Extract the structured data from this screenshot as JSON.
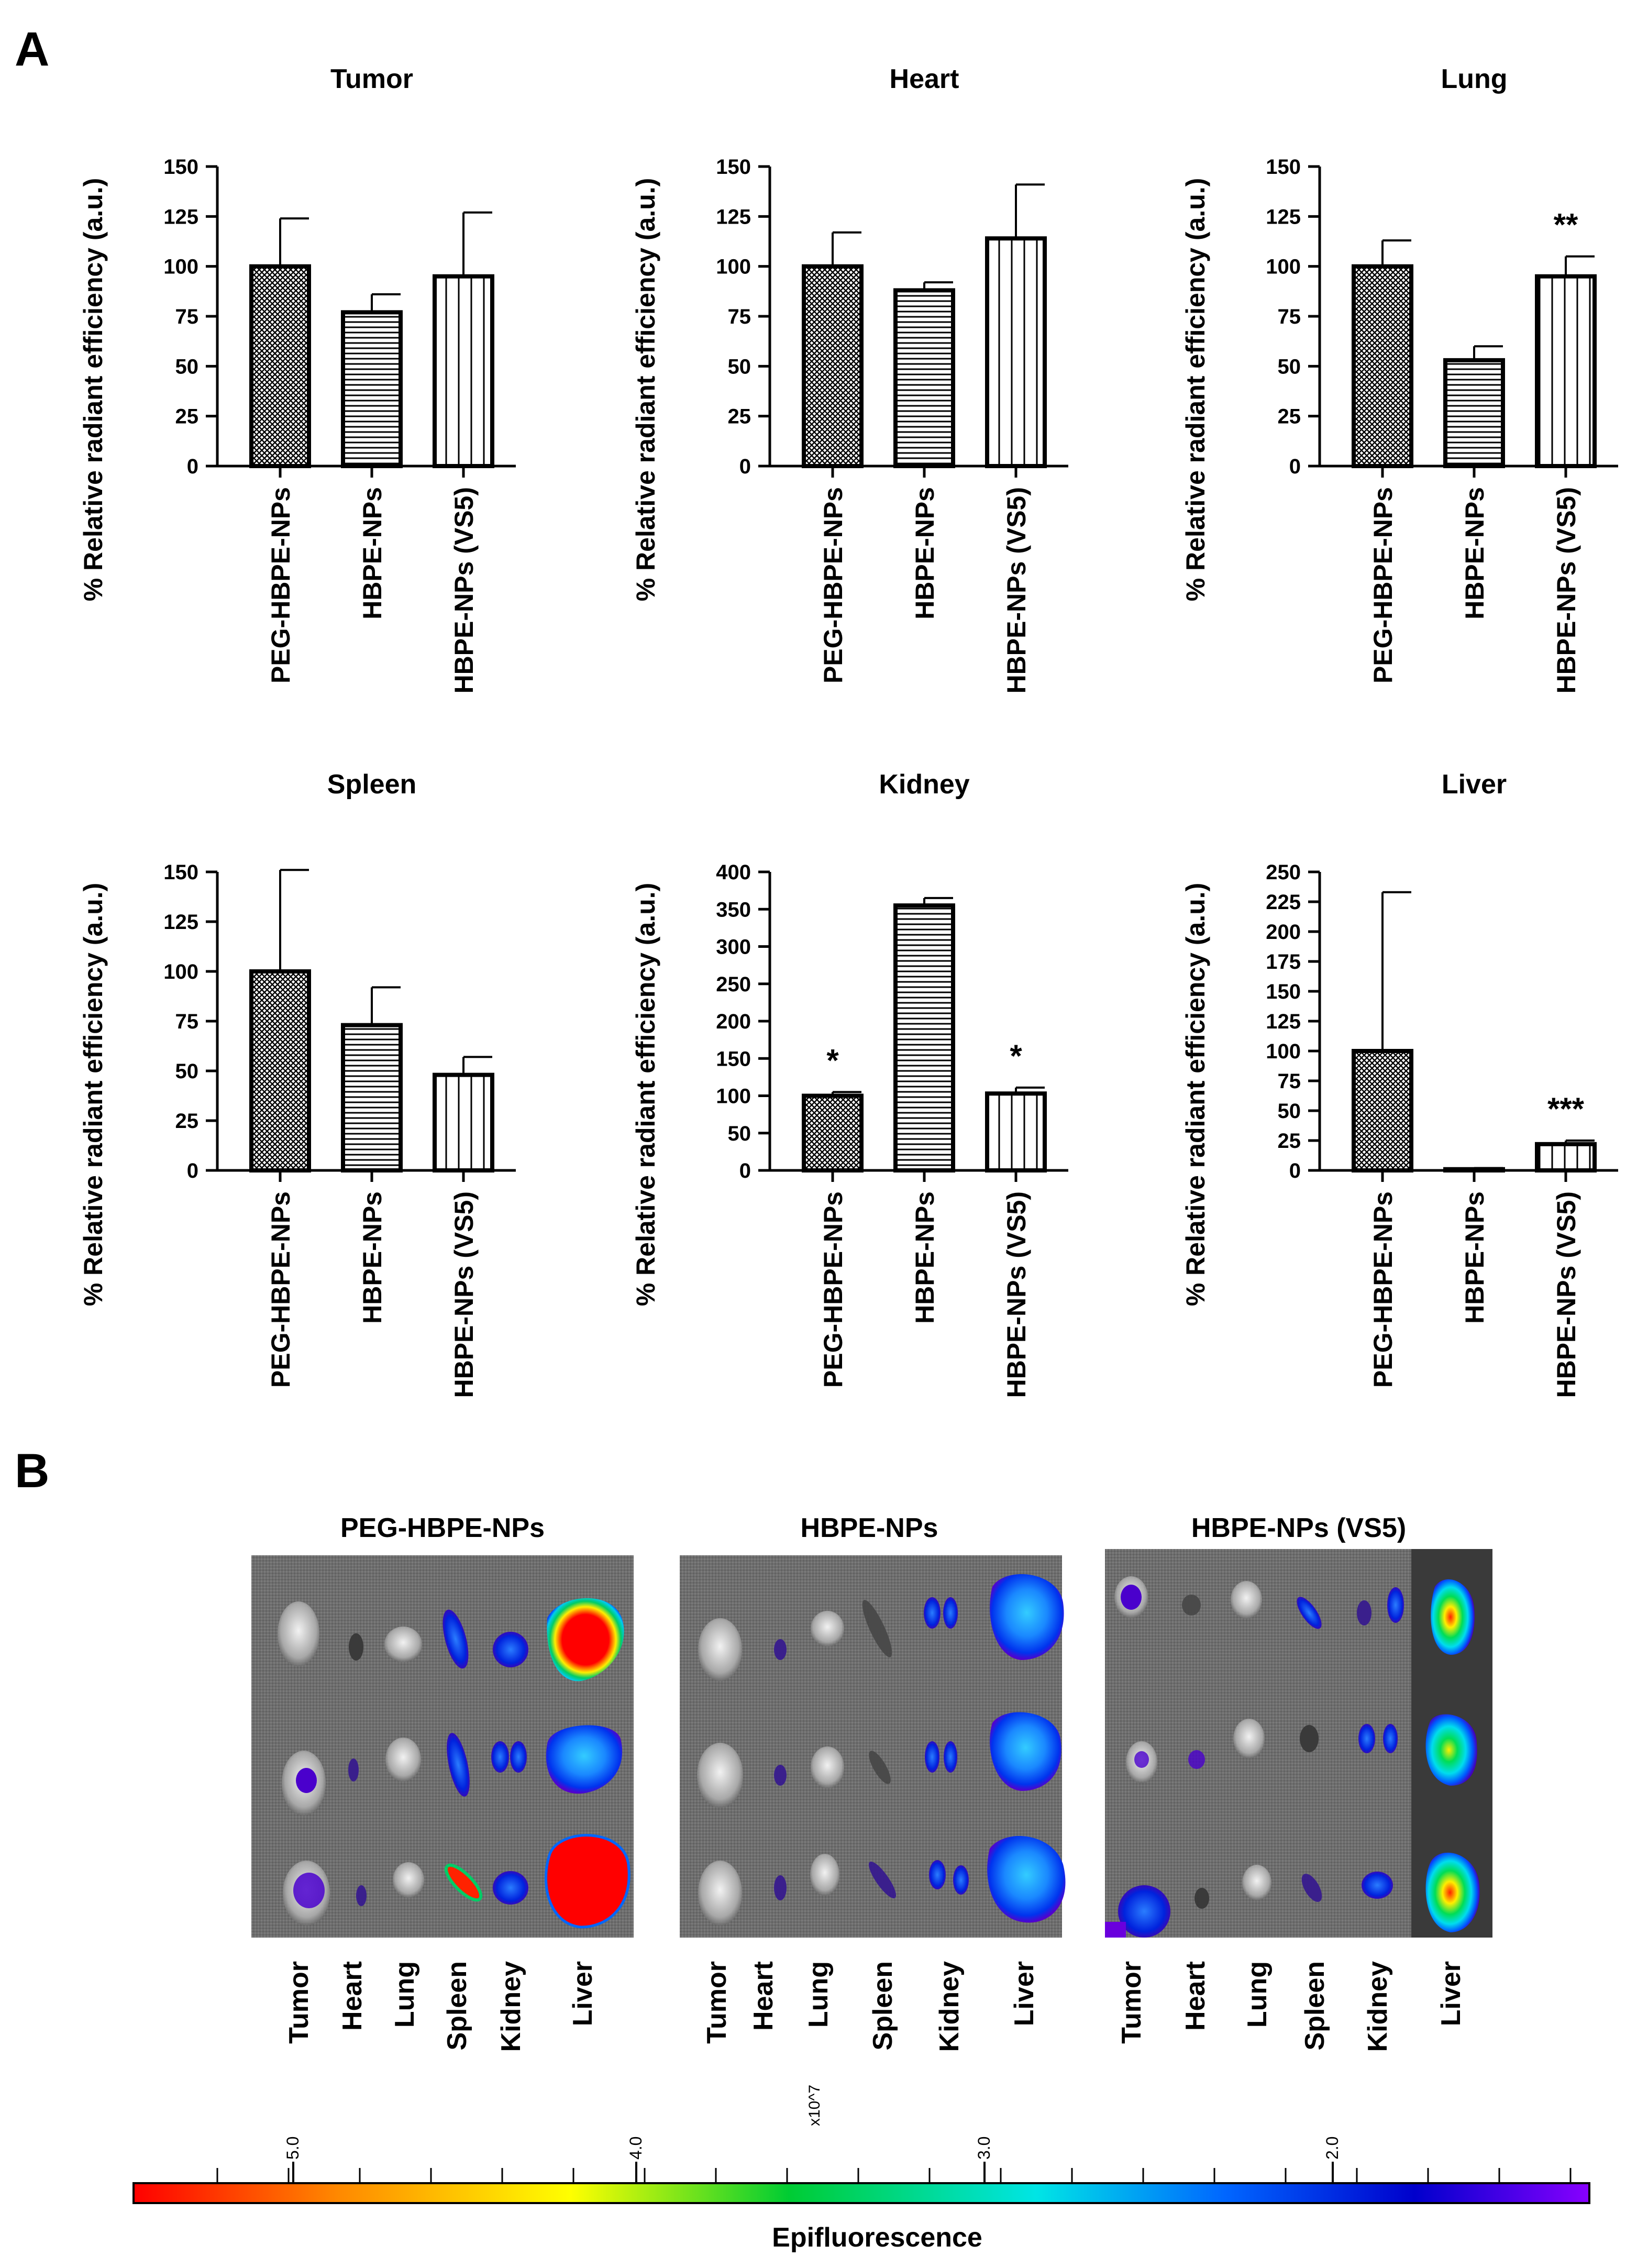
{
  "panel_labels": {
    "a": "A",
    "b": "B"
  },
  "chart_data": [
    {
      "type": "bar",
      "title": "Tumor",
      "categories": [
        "PEG-HBPE-NPs",
        "HBPE-NPs",
        "HBPE-NPs (VS5)"
      ],
      "values": [
        100,
        77,
        95
      ],
      "errors": [
        24,
        9,
        32
      ],
      "ylabel": "% Relative radiant efficiency (a.u.)",
      "ylim": [
        0,
        150
      ],
      "yticks": [
        0,
        25,
        50,
        75,
        100,
        125,
        150
      ],
      "patterns": [
        "crosshatch",
        "horizontal",
        "vertical"
      ],
      "significance": [
        "",
        "",
        ""
      ]
    },
    {
      "type": "bar",
      "title": "Heart",
      "categories": [
        "PEG-HBPE-NPs",
        "HBPE-NPs",
        "HBPE-NPs (VS5)"
      ],
      "values": [
        100,
        88,
        114
      ],
      "errors": [
        17,
        4,
        27
      ],
      "ylabel": "% Relative radiant efficiency (a.u.)",
      "ylim": [
        0,
        150
      ],
      "yticks": [
        0,
        25,
        50,
        75,
        100,
        125,
        150
      ],
      "patterns": [
        "crosshatch",
        "horizontal",
        "vertical"
      ],
      "significance": [
        "",
        "",
        ""
      ]
    },
    {
      "type": "bar",
      "title": "Lung",
      "categories": [
        "PEG-HBPE-NPs",
        "HBPE-NPs",
        "HBPE-NPs (VS5)"
      ],
      "values": [
        100,
        53,
        95
      ],
      "errors": [
        13,
        7,
        10
      ],
      "ylabel": "% Relative radiant efficiency (a.u.)",
      "ylim": [
        0,
        150
      ],
      "yticks": [
        0,
        25,
        50,
        75,
        100,
        125,
        150
      ],
      "patterns": [
        "crosshatch",
        "horizontal",
        "vertical"
      ],
      "significance": [
        "",
        "",
        "**"
      ]
    },
    {
      "type": "bar",
      "title": "Spleen",
      "categories": [
        "PEG-HBPE-NPs",
        "HBPE-NPs",
        "HBPE-NPs (VS5)"
      ],
      "values": [
        100,
        73,
        48
      ],
      "errors": [
        51,
        19,
        9
      ],
      "ylabel": "% Relative radiant efficiency (a.u.)",
      "ylim": [
        0,
        150
      ],
      "yticks": [
        0,
        25,
        50,
        75,
        100,
        125,
        150
      ],
      "patterns": [
        "crosshatch",
        "horizontal",
        "vertical"
      ],
      "significance": [
        "",
        "",
        ""
      ]
    },
    {
      "type": "bar",
      "title": "Kidney",
      "categories": [
        "PEG-HBPE-NPs",
        "HBPE-NPs",
        "HBPE-NPs (VS5)"
      ],
      "values": [
        100,
        355,
        103
      ],
      "errors": [
        5,
        10,
        8
      ],
      "ylabel": "% Relative radiant efficiency (a.u.)",
      "ylim": [
        0,
        400
      ],
      "yticks": [
        0,
        50,
        100,
        150,
        200,
        250,
        300,
        350,
        400
      ],
      "patterns": [
        "crosshatch",
        "horizontal",
        "vertical"
      ],
      "significance": [
        "*",
        "",
        "*"
      ]
    },
    {
      "type": "bar",
      "title": "Liver",
      "categories": [
        "PEG-HBPE-NPs",
        "HBPE-NPs",
        "HBPE-NPs (VS5)"
      ],
      "values": [
        100,
        1,
        22
      ],
      "errors": [
        133,
        1,
        3
      ],
      "ylabel": "% Relative radiant efficiency (a.u.)",
      "ylim": [
        0,
        250
      ],
      "yticks": [
        0,
        25,
        50,
        75,
        100,
        125,
        150,
        175,
        200,
        225,
        250
      ],
      "patterns": [
        "crosshatch",
        "horizontal",
        "vertical"
      ],
      "significance": [
        "",
        "",
        "***"
      ]
    }
  ],
  "imaging": {
    "groups": [
      {
        "title": "PEG-HBPE-NPs"
      },
      {
        "title": "HBPE-NPs"
      },
      {
        "title": "HBPE-NPs (VS5)"
      }
    ],
    "organ_labels": [
      "Tumor",
      "Heart",
      "Lung",
      "Spleen",
      "Kidney",
      "Liver"
    ]
  },
  "colorbar": {
    "label": "Epifluorescence",
    "scale_label": "x10^7",
    "tick_labels": [
      "5.0",
      "4.0",
      "3.0",
      "2.0"
    ],
    "colors": [
      "#ff0000",
      "#ff8800",
      "#ffff00",
      "#00cc33",
      "#00e5e5",
      "#0066ff",
      "#0000cc",
      "#8800ff"
    ]
  }
}
